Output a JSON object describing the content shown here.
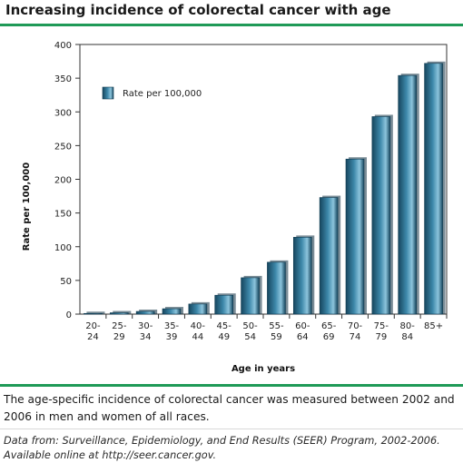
{
  "title": "Increasing incidence of colorectal cancer with age",
  "caption": "The age-specific incidence of colorectal cancer was measured between 2002 and 2006 in men and women of all races.",
  "source_line1": "Data from: Surveillance, Epidemiology, and End Results (SEER) Program, 2002-2006.",
  "source_line2": "Available online at http://seer.cancer.gov.",
  "colors": {
    "rule": "#1f9a57",
    "bar_dark": "#16465e",
    "bar_mid": "#3d88aa",
    "bar_light": "#8cc4dc"
  },
  "chart_data": {
    "type": "bar",
    "categories": [
      [
        "20-",
        "24"
      ],
      [
        "25-",
        "29"
      ],
      [
        "30-",
        "34"
      ],
      [
        "35-",
        "39"
      ],
      [
        "40-",
        "44"
      ],
      [
        "45-",
        "49"
      ],
      [
        "50-",
        "54"
      ],
      [
        "55-",
        "59"
      ],
      [
        "60-",
        "64"
      ],
      [
        "65-",
        "69"
      ],
      [
        "70-",
        "74"
      ],
      [
        "75-",
        "79"
      ],
      [
        "80-",
        "84"
      ],
      [
        "85+"
      ]
    ],
    "series": [
      {
        "name": "Rate per 100,000",
        "values": [
          1,
          2,
          4,
          8,
          15,
          28,
          54,
          77,
          114,
          173,
          230,
          293,
          354,
          372
        ]
      }
    ],
    "xlabel": "Age in years",
    "ylabel": "Rate per 100,000",
    "ylim": [
      0,
      400
    ],
    "yticks": [
      0,
      50,
      100,
      150,
      200,
      250,
      300,
      350,
      400
    ],
    "grid": false,
    "legend_position": "top-left"
  }
}
